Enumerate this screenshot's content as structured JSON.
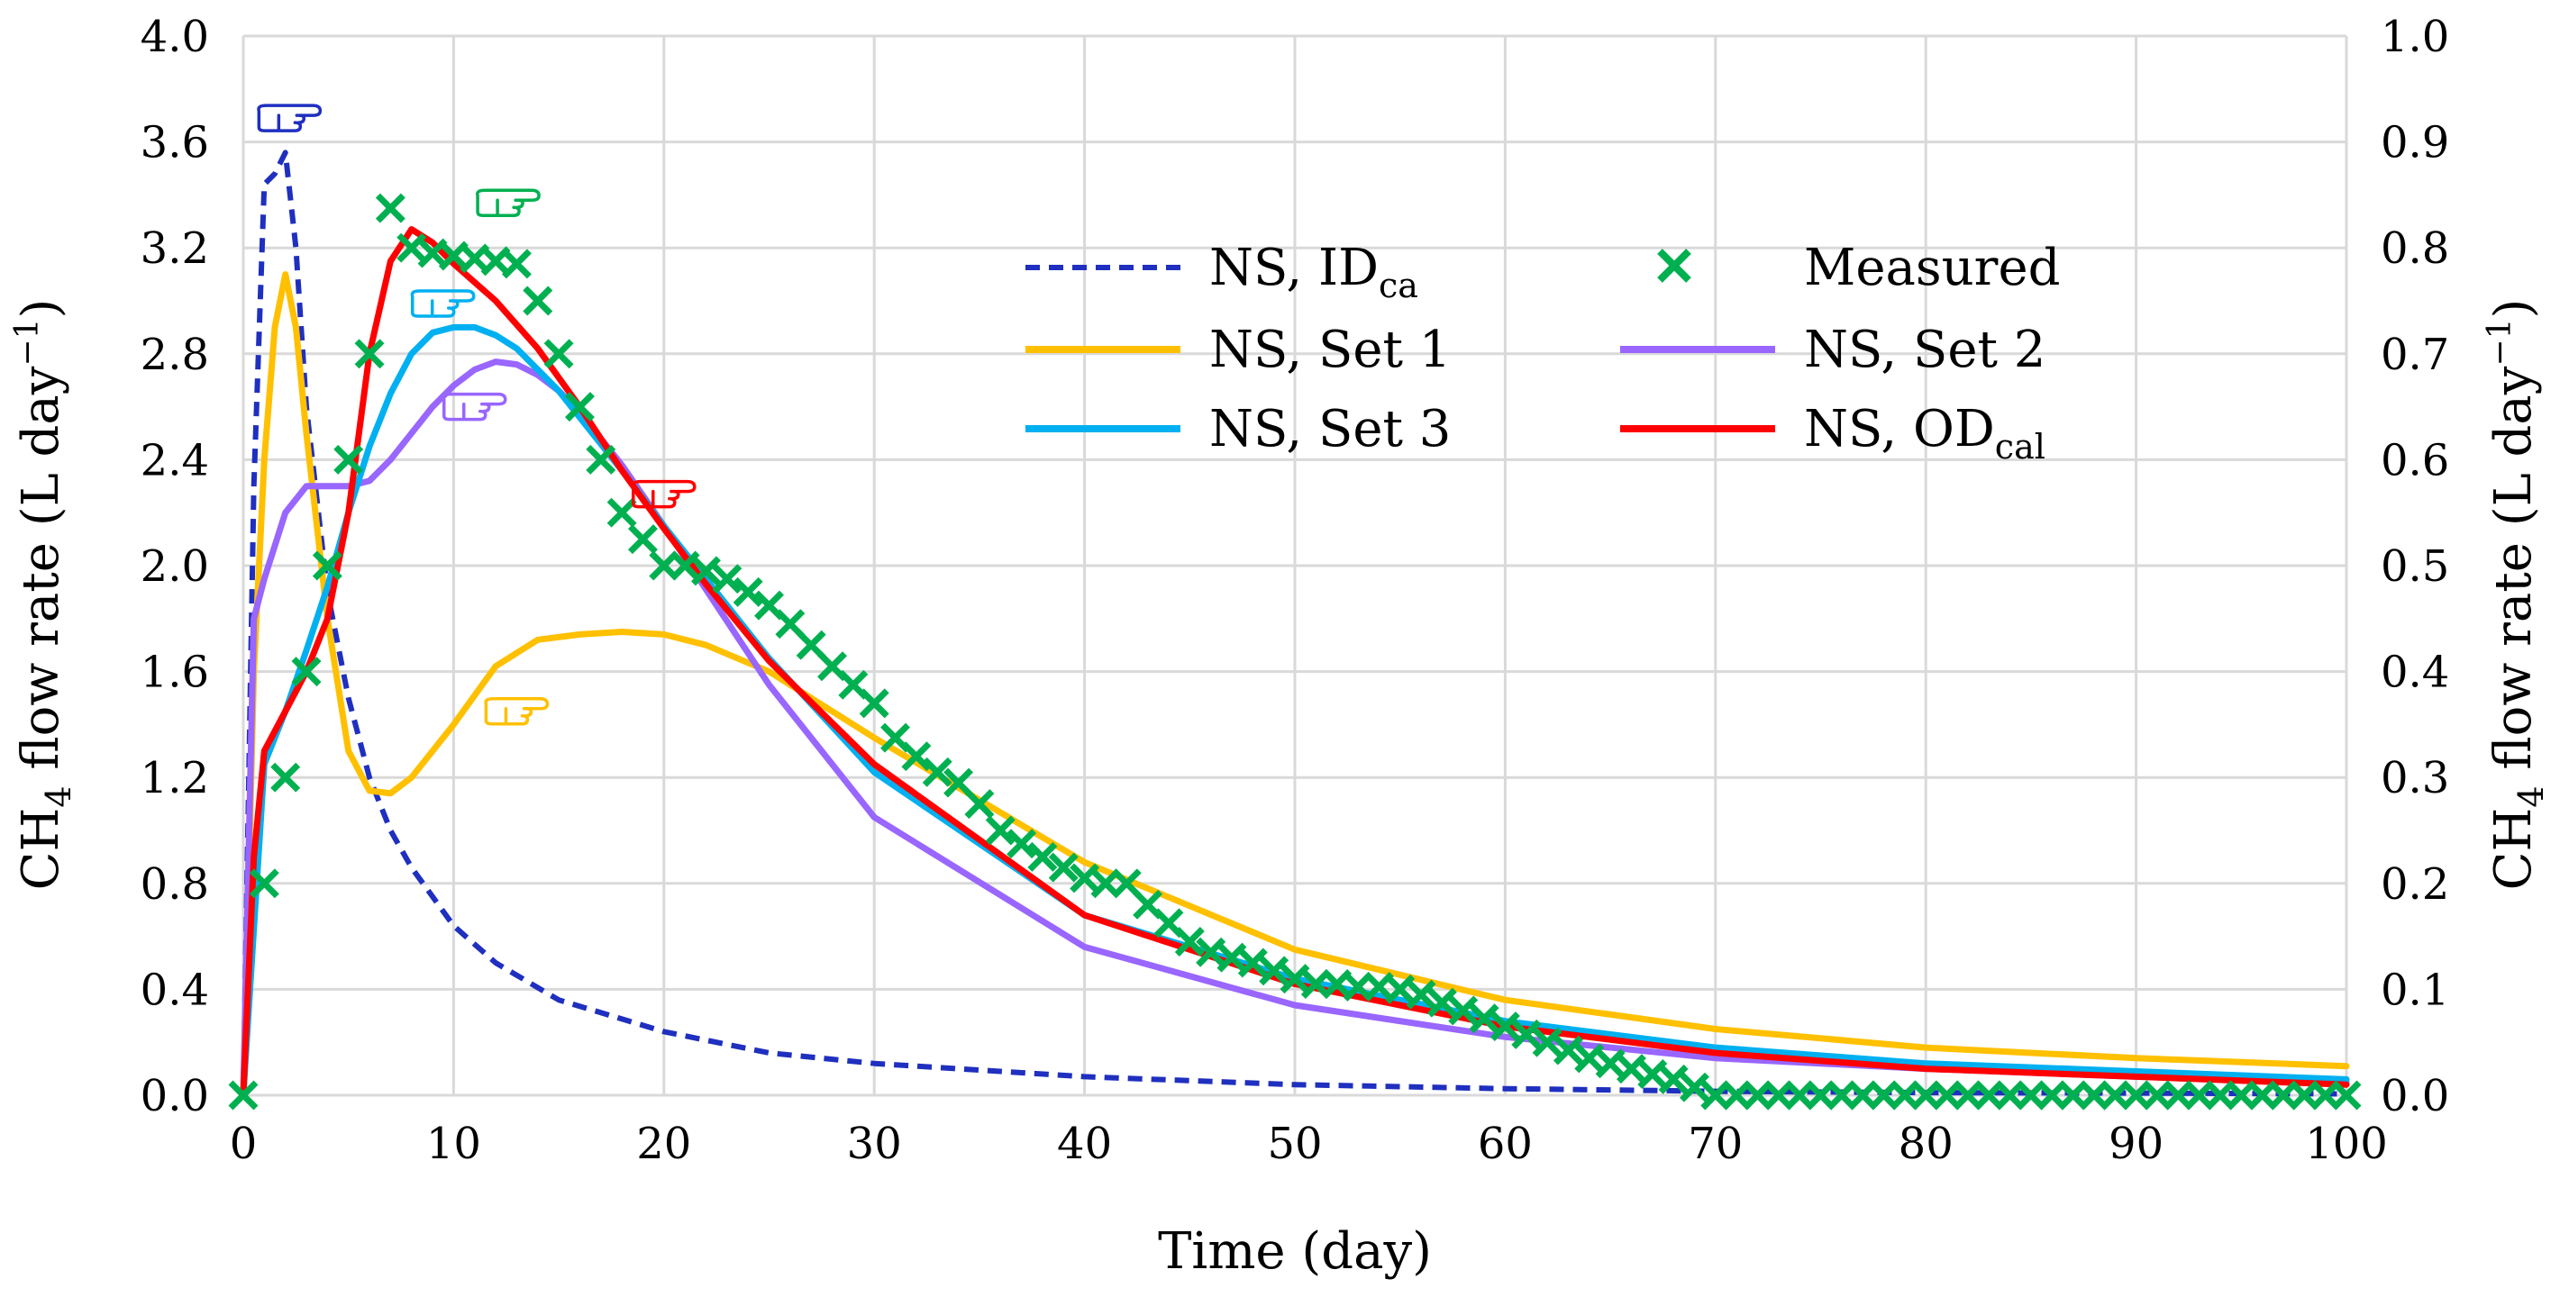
{
  "chart_data": {
    "type": "line",
    "xlabel": "Time (day)",
    "ylabel": {
      "main": "CH",
      "sub": "4",
      "rest": " flow rate (L day",
      "sup": "−1",
      "close": ")"
    },
    "y2label": {
      "main": "CH",
      "sub": "4",
      "rest": " flow rate (L day",
      "sup": "−1",
      "close": ")"
    },
    "xlim": [
      0,
      100
    ],
    "ylim": [
      0,
      4.0
    ],
    "y2lim": [
      0,
      1.0
    ],
    "xticks": [
      "0",
      "10",
      "20",
      "30",
      "40",
      "50",
      "60",
      "70",
      "80",
      "90",
      "100"
    ],
    "yticks": [
      "0.0",
      "0.4",
      "0.8",
      "1.2",
      "1.6",
      "2.0",
      "2.4",
      "2.8",
      "3.2",
      "3.6",
      "4.0"
    ],
    "y2ticks": [
      "0.0",
      "0.1",
      "0.2",
      "0.3",
      "0.4",
      "0.5",
      "0.6",
      "0.7",
      "0.8",
      "0.9",
      "1.0"
    ],
    "grid": true,
    "legend_position": "top-center",
    "series": [
      {
        "name": "NS, IDca",
        "label_main": "NS, ID",
        "label_sub": "ca",
        "color": "#1f2fbf",
        "style": "dashed",
        "axis": "left",
        "marker_color": "#1f2fbf",
        "x": [
          0,
          0.5,
          1,
          1.5,
          2,
          2.5,
          3,
          4,
          5,
          6,
          7,
          8,
          10,
          12,
          15,
          20,
          25,
          30,
          40,
          50,
          60,
          70,
          80,
          90,
          100
        ],
        "y": [
          0,
          2.3,
          3.44,
          3.48,
          3.56,
          3.2,
          2.6,
          1.9,
          1.5,
          1.2,
          1.0,
          0.86,
          0.64,
          0.5,
          0.36,
          0.24,
          0.16,
          0.12,
          0.07,
          0.04,
          0.025,
          0.015,
          0.01,
          0.008,
          0.005
        ]
      },
      {
        "name": "NS, Set 1",
        "label_main": "NS, Set 1",
        "label_sub": "",
        "color": "#ffc000",
        "style": "solid",
        "axis": "left",
        "marker_color": "#ffc000",
        "x": [
          0,
          0.5,
          1,
          1.5,
          2,
          2.5,
          3,
          4,
          5,
          6,
          7,
          8,
          10,
          12,
          14,
          16,
          18,
          20,
          22,
          25,
          30,
          40,
          50,
          60,
          70,
          80,
          90,
          100
        ],
        "y": [
          0,
          1.6,
          2.4,
          2.9,
          3.1,
          2.9,
          2.5,
          1.8,
          1.3,
          1.15,
          1.14,
          1.2,
          1.4,
          1.62,
          1.72,
          1.74,
          1.75,
          1.74,
          1.7,
          1.6,
          1.35,
          0.88,
          0.55,
          0.36,
          0.25,
          0.18,
          0.14,
          0.11
        ]
      },
      {
        "name": "NS, Set 2",
        "label_main": "NS, Set 2",
        "label_sub": "",
        "color": "#9966ff",
        "style": "solid",
        "axis": "left",
        "marker_color": "#9966ff",
        "x": [
          0,
          0.5,
          1,
          2,
          3,
          4,
          5,
          6,
          7,
          8,
          9,
          10,
          11,
          12,
          13,
          14,
          15,
          16,
          18,
          20,
          25,
          30,
          40,
          50,
          60,
          70,
          80,
          90,
          100
        ],
        "y": [
          0,
          1.8,
          1.95,
          2.2,
          2.3,
          2.3,
          2.3,
          2.32,
          2.4,
          2.5,
          2.6,
          2.68,
          2.74,
          2.77,
          2.76,
          2.72,
          2.66,
          2.58,
          2.38,
          2.15,
          1.55,
          1.05,
          0.56,
          0.34,
          0.22,
          0.14,
          0.1,
          0.07,
          0.05
        ]
      },
      {
        "name": "NS, Set 3",
        "label_main": "NS, Set 3",
        "label_sub": "",
        "color": "#00b0f0",
        "style": "solid",
        "axis": "left",
        "marker_color": "#00b0f0",
        "x": [
          0,
          1,
          2,
          3,
          4,
          5,
          6,
          7,
          8,
          9,
          10,
          11,
          12,
          13,
          14,
          15,
          16,
          18,
          20,
          25,
          30,
          40,
          50,
          60,
          70,
          80,
          90,
          100
        ],
        "y": [
          0,
          1.25,
          1.45,
          1.68,
          1.92,
          2.2,
          2.45,
          2.65,
          2.8,
          2.88,
          2.9,
          2.9,
          2.87,
          2.82,
          2.74,
          2.66,
          2.56,
          2.36,
          2.15,
          1.65,
          1.22,
          0.68,
          0.44,
          0.28,
          0.18,
          0.12,
          0.09,
          0.06
        ]
      },
      {
        "name": "NS, ODcal",
        "label_main": "NS, OD",
        "label_sub": "cal",
        "color": "#ff0000",
        "style": "solid",
        "axis": "left",
        "marker_color": "#ff0000",
        "x": [
          0,
          0.5,
          1,
          2,
          3,
          4,
          5,
          6,
          7,
          8,
          9,
          10,
          12,
          14,
          16,
          18,
          20,
          22,
          25,
          30,
          40,
          50,
          60,
          70,
          80,
          90,
          100
        ],
        "y": [
          0,
          0.9,
          1.3,
          1.45,
          1.6,
          1.8,
          2.2,
          2.8,
          3.15,
          3.27,
          3.22,
          3.14,
          3.0,
          2.82,
          2.6,
          2.36,
          2.14,
          1.93,
          1.64,
          1.25,
          0.68,
          0.42,
          0.26,
          0.16,
          0.1,
          0.07,
          0.04
        ]
      }
    ],
    "scatter": {
      "name": "Measured",
      "label_main": "Measured",
      "label_sub": "",
      "color": "#00b050",
      "marker": "x",
      "axis": "left",
      "x": [
        0,
        1,
        2,
        3,
        4,
        5,
        6,
        7,
        8,
        9,
        10,
        11,
        12,
        13,
        14,
        15,
        16,
        17,
        18,
        19,
        20,
        21,
        22,
        23,
        24,
        25,
        26,
        27,
        28,
        29,
        30,
        31,
        32,
        33,
        34,
        35,
        36,
        37,
        38,
        39,
        40,
        41,
        42,
        43,
        44,
        45,
        46,
        47,
        48,
        49,
        50,
        51,
        52,
        53,
        54,
        55,
        56,
        57,
        58,
        59,
        60,
        61,
        62,
        63,
        64,
        65,
        66,
        67,
        68,
        69,
        70,
        71,
        72,
        73,
        74,
        75,
        76,
        77,
        78,
        79,
        80,
        81,
        82,
        83,
        84,
        85,
        86,
        87,
        88,
        89,
        90,
        91,
        92,
        93,
        94,
        95,
        96,
        97,
        98,
        99,
        100
      ],
      "y": [
        0.0,
        0.8,
        1.2,
        1.6,
        2.0,
        2.4,
        2.8,
        3.35,
        3.2,
        3.18,
        3.17,
        3.16,
        3.15,
        3.14,
        3.0,
        2.8,
        2.6,
        2.4,
        2.2,
        2.1,
        2.0,
        2.0,
        1.98,
        1.95,
        1.9,
        1.85,
        1.78,
        1.7,
        1.62,
        1.55,
        1.48,
        1.35,
        1.28,
        1.22,
        1.18,
        1.1,
        1.0,
        0.95,
        0.9,
        0.86,
        0.82,
        0.8,
        0.8,
        0.72,
        0.65,
        0.58,
        0.54,
        0.52,
        0.5,
        0.47,
        0.44,
        0.42,
        0.42,
        0.41,
        0.41,
        0.4,
        0.38,
        0.35,
        0.32,
        0.29,
        0.26,
        0.23,
        0.2,
        0.17,
        0.14,
        0.12,
        0.1,
        0.08,
        0.06,
        0.03,
        0.0,
        0.0,
        0.0,
        0.0,
        0.0,
        0.0,
        0.0,
        0.0,
        0.0,
        0.0,
        0.0,
        0.0,
        0.0,
        0.0,
        0.0,
        0.0,
        0.0,
        0.0,
        0.0,
        0.0,
        0.0,
        0.0,
        0.0,
        0.0,
        0.0,
        0.0,
        0.0,
        0.0,
        0.0,
        0.0,
        0.0
      ]
    },
    "legend_order": [
      "NS, IDca",
      "Measured",
      "NS, Set 1",
      "NS, Set 2",
      "NS, Set 3",
      "NS, ODcal"
    ],
    "annotations": [
      {
        "type": "pointing-hand",
        "color": "#1f2fbf",
        "x": 2.2,
        "y": 3.69
      },
      {
        "type": "pointing-hand",
        "color": "#00b050",
        "x": 12.6,
        "y": 3.37
      },
      {
        "type": "pointing-hand",
        "color": "#00b0f0",
        "x": 9.5,
        "y": 2.99
      },
      {
        "type": "pointing-hand",
        "color": "#9966ff",
        "x": 11.0,
        "y": 2.6
      },
      {
        "type": "pointing-hand",
        "color": "#ff0000",
        "x": 20.0,
        "y": 2.27
      },
      {
        "type": "pointing-hand",
        "color": "#ffc000",
        "x": 13.0,
        "y": 1.45
      }
    ]
  }
}
